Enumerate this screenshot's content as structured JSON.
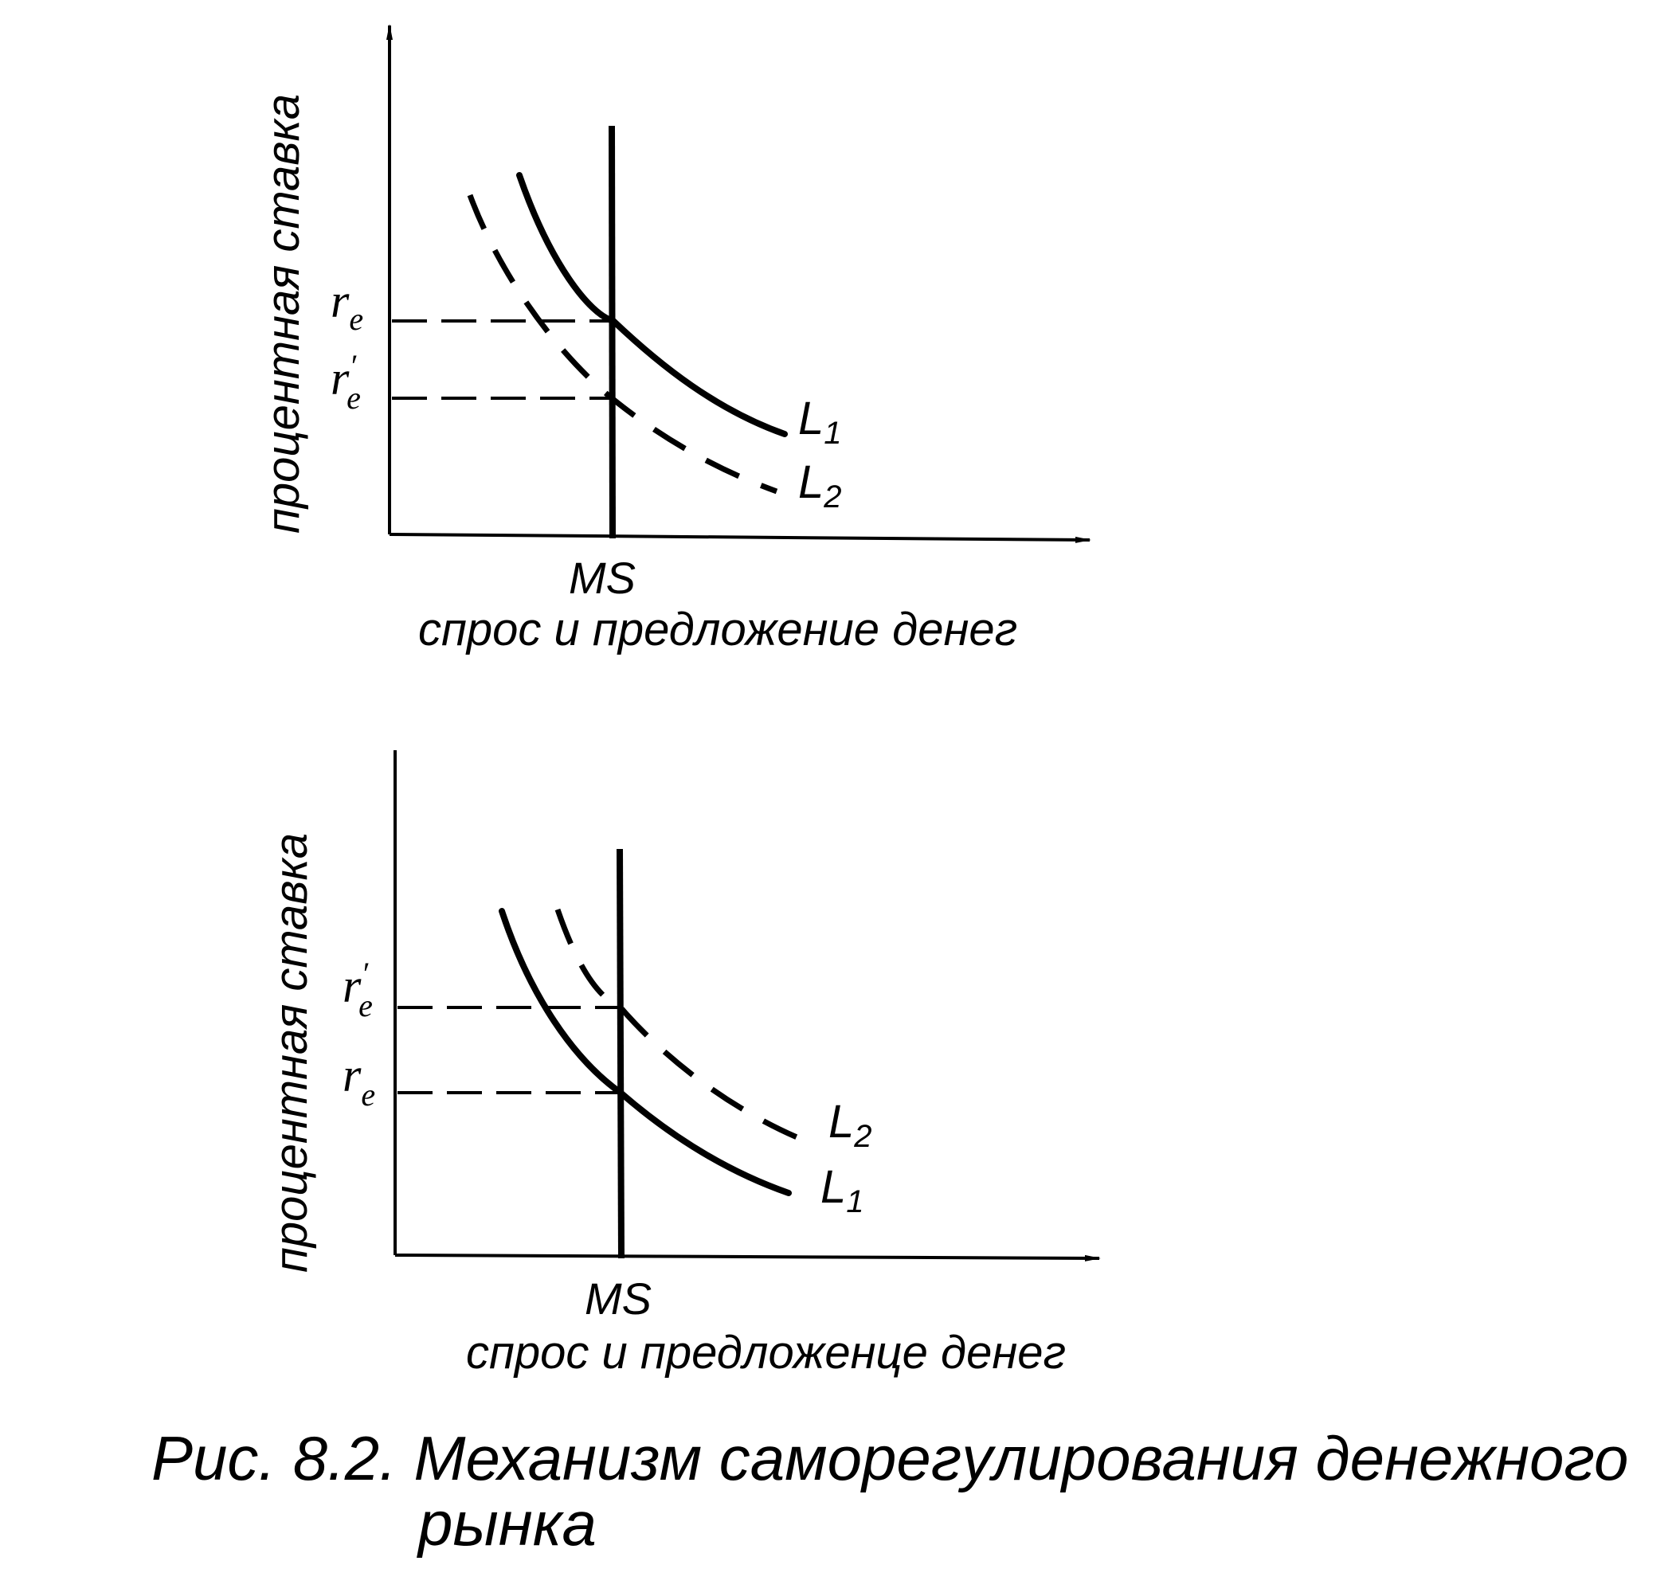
{
  "figure": {
    "caption_line1": "Рис. 8.2. Механизм саморегулирования денежного",
    "caption_line2": "рынка"
  },
  "top_panel": {
    "y_axis_label": "процентная ставка",
    "x_axis_label": "спрос и предложение денег",
    "ms_label": "MS",
    "rate_high": {
      "base": "r",
      "sub": "e",
      "prime": ""
    },
    "rate_low": {
      "base": "r",
      "sub": "e",
      "prime": "′"
    },
    "curve_solid": {
      "base": "L",
      "sub": "1"
    },
    "curve_dashed": {
      "base": "L",
      "sub": "2"
    }
  },
  "bottom_panel": {
    "y_axis_label": "процентная ставка",
    "x_axis_label": "спрос и предложенце денег",
    "ms_label": "MS",
    "rate_high": {
      "base": "r",
      "sub": "e",
      "prime": "′"
    },
    "rate_low": {
      "base": "r",
      "sub": "e",
      "prime": ""
    },
    "curve_dashed": {
      "base": "L",
      "sub": "2"
    },
    "curve_solid": {
      "base": "L",
      "sub": "1"
    }
  },
  "style": {
    "ink_color": "#000000",
    "background": "#ffffff"
  }
}
